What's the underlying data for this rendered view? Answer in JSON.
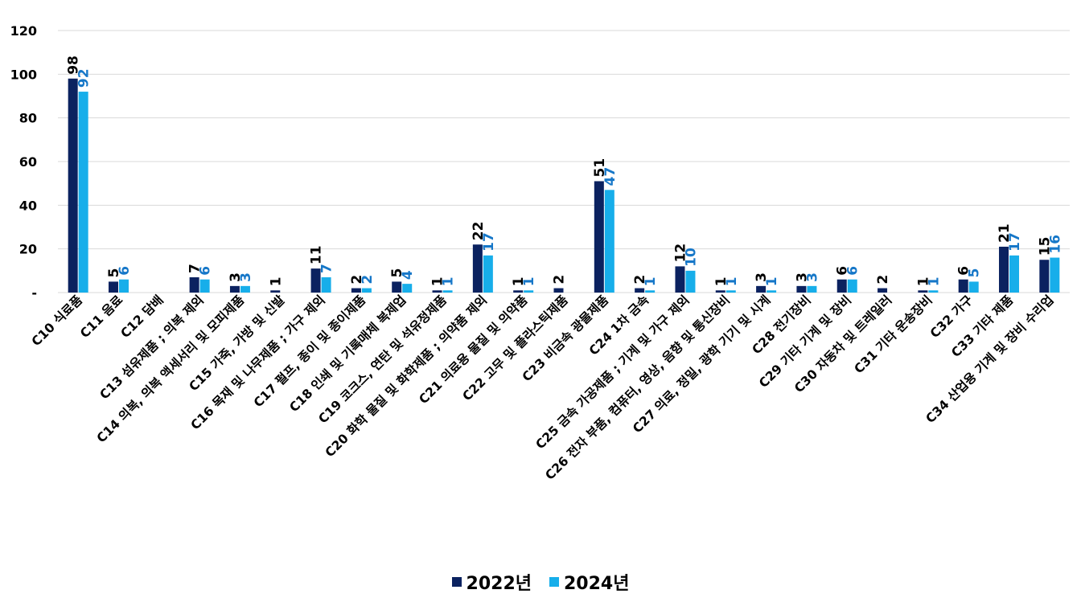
{
  "chart_data": {
    "type": "bar",
    "categories": [
      "C10 식료품",
      "C11 음료",
      "C12 담배",
      "C13 섬유제품 ; 의복 제외",
      "C14 의복, 의복 액세서리 및 모피제품",
      "C15 가죽, 가방 및 신발",
      "C16 목재 및 나무제품 ; 가구 제외",
      "C17 펄프, 종이 및 종이제품",
      "C18 인쇄 및 기록매체 복제업",
      "C19 코크스, 연탄 및 석유정제품",
      "C20 화학 물질 및 화학제품 ; 의약품 제외",
      "C21 의료용 물질 및 의약품",
      "C22 고무 및 플라스틱제품",
      "C23 비금속 광물제품",
      "C24 1차 금속",
      "C25 금속 가공제품 ; 기계 및 가구 제외",
      "C26 전자 부품, 컴퓨터, 영상, 음향 및 통신장비",
      "C27 의료, 정밀, 광학 기기 및 시계",
      "C28 전기장비",
      "C29 기타 기계 및 장비",
      "C30 자동차 및 트레일러",
      "C31 기타 운송장비",
      "C32 가구",
      "C33 기타 제품",
      "C34 산업용 기계 및 장비 수리업"
    ],
    "series": [
      {
        "name": "2022년",
        "color": "#0b2260",
        "values": [
          98,
          5,
          null,
          7,
          3,
          1,
          11,
          2,
          5,
          1,
          22,
          1,
          2,
          51,
          2,
          12,
          1,
          3,
          3,
          6,
          2,
          1,
          6,
          21,
          15
        ],
        "labels": [
          "98",
          "5",
          "",
          "7",
          "3",
          "1",
          "11",
          "2",
          "5",
          "1",
          "22",
          "1",
          "2",
          "51",
          "2",
          "12",
          "1",
          "3",
          "3",
          "6",
          "2",
          "1",
          "6",
          "21",
          "15"
        ]
      },
      {
        "name": "2024년",
        "color": "#17aeea",
        "label_color": "#1677c8",
        "values": [
          92,
          6,
          null,
          6,
          3,
          null,
          7,
          2,
          4,
          1,
          17,
          1,
          null,
          47,
          1,
          10,
          1,
          1,
          3,
          6,
          null,
          1,
          5,
          17,
          16
        ],
        "labels": [
          "92",
          "6",
          "",
          "6",
          "3",
          "",
          "7",
          "2",
          "4",
          "1",
          "17",
          "1",
          "",
          "47",
          "1",
          "10",
          "1",
          "1",
          "3",
          "6",
          "",
          "1",
          "5",
          "17",
          "16"
        ]
      }
    ],
    "ylim": [
      0,
      120
    ],
    "yticks": [
      0,
      20,
      40,
      60,
      80,
      100,
      120
    ],
    "ytick_labels": [
      "-",
      "20",
      "40",
      "60",
      "80",
      "100",
      "120"
    ],
    "grid": true,
    "legend_position": "bottom"
  }
}
